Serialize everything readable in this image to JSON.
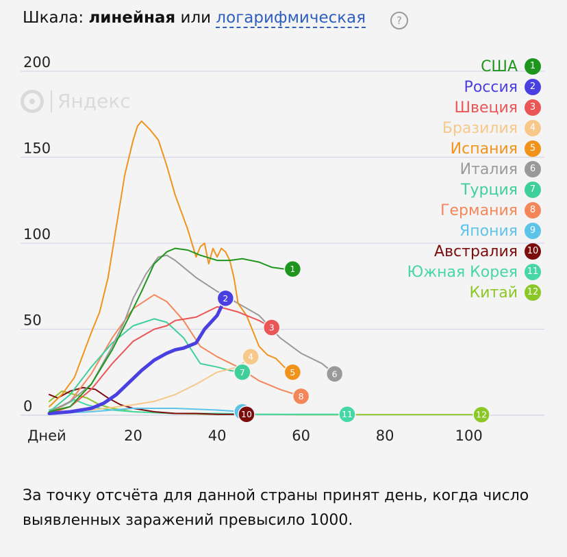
{
  "header": {
    "prefix": "Шкала:",
    "linear": "линейная",
    "or": "или",
    "log": "логарифмическая",
    "help": "?"
  },
  "watermark": "Яндекс",
  "caption": "За точку отсчёта для данной страны принят день, когда число выявленных заражений превысило 1000.",
  "chart_data": {
    "type": "line",
    "title": "",
    "xlabel": "Дней",
    "ylabel": "",
    "x_tick_values": [
      20,
      40,
      60,
      80,
      100
    ],
    "y_tick_values": [
      0,
      50,
      100,
      150,
      200
    ],
    "xlim": [
      0,
      118
    ],
    "ylim": [
      0,
      200
    ],
    "grid": true,
    "legend_position": "top-right",
    "series": [
      {
        "name": "США",
        "marker": "1",
        "color": "#1e961e",
        "x": [
          0,
          5,
          10,
          15,
          20,
          22,
          25,
          28,
          30,
          33,
          36,
          40,
          43,
          46,
          50,
          53,
          56,
          58
        ],
        "y": [
          2,
          5,
          18,
          38,
          62,
          72,
          88,
          95,
          97,
          96,
          93,
          90,
          90,
          91,
          89,
          86,
          85,
          85
        ]
      },
      {
        "name": "Россия",
        "marker": "2",
        "color": "#4a3fe0",
        "x": [
          0,
          5,
          10,
          13,
          16,
          19,
          22,
          25,
          28,
          30,
          32,
          35,
          37,
          40,
          42
        ],
        "y": [
          1,
          2,
          4,
          7,
          12,
          19,
          26,
          32,
          36,
          38,
          39,
          42,
          50,
          58,
          68
        ]
      },
      {
        "name": "Швеция",
        "marker": "3",
        "color": "#ea5555",
        "x": [
          0,
          5,
          10,
          15,
          20,
          25,
          28,
          30,
          35,
          40,
          42,
          45,
          48,
          50,
          53
        ],
        "y": [
          1,
          5,
          15,
          30,
          43,
          50,
          52,
          55,
          57,
          63,
          62,
          60,
          57,
          55,
          51
        ]
      },
      {
        "name": "Бразилия",
        "marker": "4",
        "color": "#f6c88a",
        "x": [
          0,
          10,
          20,
          25,
          30,
          35,
          40,
          45,
          48
        ],
        "y": [
          1,
          3,
          6,
          8,
          12,
          18,
          25,
          28,
          34
        ]
      },
      {
        "name": "Испания",
        "marker": "5",
        "color": "#f1931b",
        "x": [
          0,
          3,
          6,
          8,
          10,
          12,
          14,
          16,
          18,
          20,
          21,
          22,
          24,
          26,
          28,
          30,
          33,
          35,
          36,
          37,
          38,
          39,
          40,
          41,
          42,
          43,
          44,
          45,
          47,
          50,
          52,
          54,
          56,
          58
        ],
        "y": [
          5,
          12,
          22,
          35,
          48,
          60,
          80,
          110,
          140,
          160,
          168,
          171,
          166,
          160,
          145,
          128,
          108,
          92,
          98,
          100,
          88,
          97,
          92,
          97,
          95,
          90,
          80,
          65,
          58,
          40,
          35,
          33,
          28,
          25
        ]
      },
      {
        "name": "Италия",
        "marker": "6",
        "color": "#999999",
        "x": [
          0,
          5,
          10,
          15,
          18,
          20,
          23,
          26,
          28,
          30,
          35,
          40,
          45,
          50,
          55,
          60,
          65,
          68
        ],
        "y": [
          2,
          8,
          18,
          40,
          55,
          68,
          82,
          92,
          93,
          90,
          80,
          72,
          65,
          58,
          45,
          36,
          30,
          24
        ]
      },
      {
        "name": "Турция",
        "marker": "7",
        "color": "#3ecf9a",
        "x": [
          0,
          5,
          10,
          15,
          20,
          25,
          28,
          32,
          36,
          40,
          43,
          46
        ],
        "y": [
          2,
          12,
          28,
          42,
          52,
          56,
          54,
          45,
          30,
          28,
          26,
          25
        ]
      },
      {
        "name": "Германия",
        "marker": "8",
        "color": "#f4875a",
        "x": [
          0,
          5,
          10,
          15,
          20,
          25,
          28,
          32,
          36,
          40,
          45,
          50,
          55,
          60
        ],
        "y": [
          1,
          8,
          24,
          45,
          62,
          70,
          66,
          55,
          40,
          34,
          28,
          20,
          15,
          11
        ]
      },
      {
        "name": "Япония",
        "marker": "9",
        "color": "#5dc3e8",
        "x": [
          0,
          10,
          20,
          30,
          40,
          46
        ],
        "y": [
          1,
          2,
          4,
          4,
          3,
          2
        ]
      },
      {
        "name": "Австралия",
        "marker": "10",
        "color": "#7b0d0d",
        "x": [
          0,
          2,
          5,
          8,
          11,
          14,
          17,
          20,
          25,
          30,
          35,
          40,
          45,
          47
        ],
        "y": [
          12,
          10,
          14,
          16,
          15,
          10,
          6,
          4,
          2,
          1,
          1,
          0.5,
          0.5,
          0.5
        ]
      },
      {
        "name": "Южная Корея",
        "marker": "11",
        "color": "#46d7a7",
        "x": [
          0,
          3,
          6,
          9,
          12,
          15,
          20,
          30,
          40,
          50,
          60,
          71
        ],
        "y": [
          3,
          5,
          9,
          6,
          4,
          3,
          2,
          1,
          1,
          0.5,
          0.5,
          0.5
        ]
      },
      {
        "name": "Китай",
        "marker": "12",
        "color": "#8bc726",
        "x": [
          0,
          3,
          6,
          9,
          12,
          15,
          20,
          30,
          40,
          50,
          60,
          70,
          80,
          90,
          103
        ],
        "y": [
          8,
          14,
          12,
          10,
          6,
          4,
          2,
          1,
          0.5,
          0.5,
          0.3,
          0.3,
          0.3,
          0.3,
          0.3
        ]
      }
    ]
  }
}
